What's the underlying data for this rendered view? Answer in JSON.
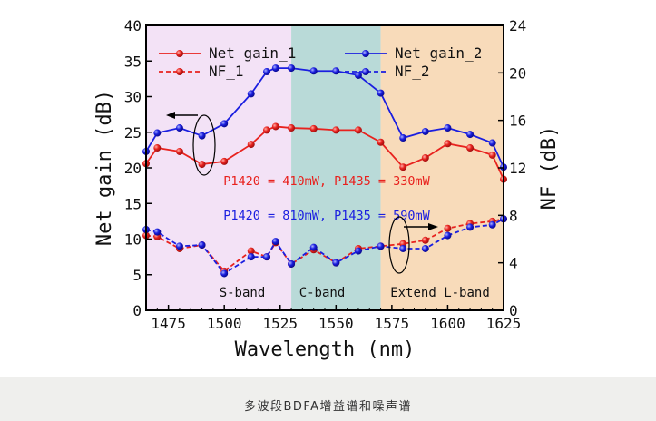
{
  "caption": "多波段BDFA增益谱和噪声谱",
  "chart_data": {
    "type": "line",
    "xlabel": "Wavelength (nm)",
    "ylabel": "Net gain (dB)",
    "y2label": "NF (dB)",
    "xlim": [
      1465,
      1625
    ],
    "ylim": [
      0,
      40
    ],
    "y2lim": [
      0,
      24
    ],
    "xticks": [
      1475,
      1500,
      1525,
      1550,
      1575,
      1600,
      1625
    ],
    "yticks": [
      0,
      5,
      10,
      15,
      20,
      25,
      30,
      35,
      40
    ],
    "y2ticks": [
      0,
      4,
      8,
      12,
      16,
      20,
      24
    ],
    "legend": "top",
    "x": [
      1465,
      1470,
      1480,
      1490,
      1500,
      1512,
      1519,
      1523,
      1530,
      1540,
      1550,
      1560,
      1570,
      1580,
      1590,
      1600,
      1610,
      1620,
      1625
    ],
    "series": [
      {
        "name": "Net gain_1",
        "axis": "left",
        "color": "#e8221e",
        "dash": false,
        "values": [
          20.6,
          22.8,
          22.3,
          20.5,
          20.9,
          23.3,
          25.3,
          25.8,
          25.6,
          25.5,
          25.3,
          25.3,
          23.6,
          20.1,
          21.4,
          23.4,
          22.8,
          21.8,
          18.4
        ]
      },
      {
        "name": "Net gain_2",
        "axis": "left",
        "color": "#1a1ee0",
        "dash": false,
        "values": [
          22.3,
          24.9,
          25.6,
          24.5,
          26.2,
          30.4,
          33.5,
          34.0,
          34.0,
          33.6,
          33.6,
          33.0,
          30.5,
          24.2,
          25.1,
          25.6,
          24.7,
          23.5,
          20.1
        ]
      },
      {
        "name": "NF_1",
        "axis": "right",
        "color": "#e8221e",
        "dash": true,
        "values": [
          6.3,
          6.2,
          5.2,
          5.5,
          3.3,
          5.0,
          4.5,
          5.7,
          3.9,
          5.1,
          4.0,
          5.2,
          5.4,
          5.6,
          5.9,
          6.9,
          7.3,
          7.5,
          7.7
        ]
      },
      {
        "name": "NF_2",
        "axis": "right",
        "color": "#1a1ee0",
        "dash": true,
        "values": [
          6.8,
          6.6,
          5.4,
          5.5,
          3.1,
          4.5,
          4.5,
          5.8,
          3.9,
          5.3,
          4.0,
          5.0,
          5.4,
          5.2,
          5.2,
          6.3,
          7.0,
          7.2,
          7.7
        ]
      }
    ],
    "bands": [
      {
        "label": "S-band",
        "from": 1465,
        "to": 1530,
        "color": "#f3e2f6"
      },
      {
        "label": "C-band",
        "from": 1530,
        "to": 1570,
        "color": "#b9dad8"
      },
      {
        "label": "Extend L-band",
        "from": 1570,
        "to": 1625,
        "color": "#f8dbba"
      }
    ],
    "annotations": [
      {
        "text": "P1420 = 410mW, P1435 = 330mW",
        "color": "#e8221e"
      },
      {
        "text": "P1420 = 810mW, P1435 = 590mW",
        "color": "#1a1ee0"
      }
    ]
  }
}
